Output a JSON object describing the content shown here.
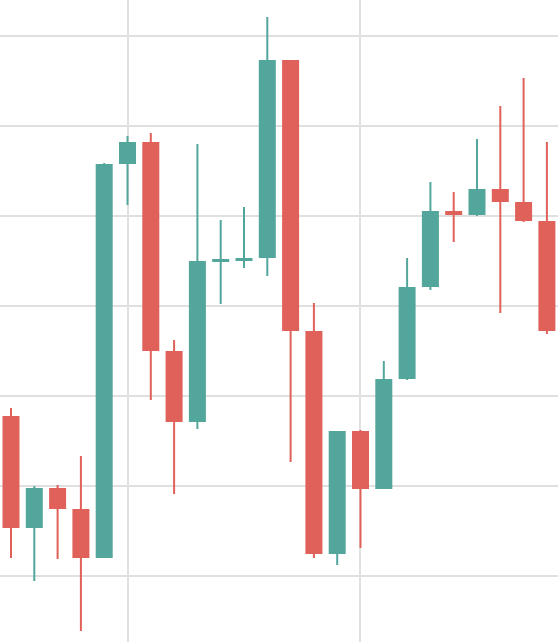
{
  "chart_data": {
    "type": "candlestick",
    "title": "",
    "xlabel": "",
    "ylabel": "",
    "grid": true,
    "colors": {
      "up": "#53a69b",
      "down": "#e0605a",
      "grid": "#e0e0e0",
      "background": "#ffffff"
    },
    "ylim": [
      0,
      642
    ],
    "candles": [
      {
        "open": 226,
        "high": 234,
        "low": 84,
        "close": 114
      },
      {
        "open": 114,
        "high": 156,
        "low": 61,
        "close": 154
      },
      {
        "open": 154,
        "high": 157,
        "low": 83,
        "close": 133
      },
      {
        "open": 133,
        "high": 186,
        "low": 11,
        "close": 84
      },
      {
        "open": 84,
        "high": 479,
        "low": 84,
        "close": 478
      },
      {
        "open": 478,
        "high": 506,
        "low": 437,
        "close": 500
      },
      {
        "open": 500,
        "high": 509,
        "low": 242,
        "close": 291
      },
      {
        "open": 291,
        "high": 302,
        "low": 148,
        "close": 220
      },
      {
        "open": 220,
        "high": 498,
        "low": 213,
        "close": 381
      },
      {
        "open": 381,
        "high": 422,
        "low": 338,
        "close": 383
      },
      {
        "open": 383,
        "high": 435,
        "low": 374,
        "close": 384
      },
      {
        "open": 384,
        "high": 625,
        "low": 366,
        "close": 582
      },
      {
        "open": 582,
        "high": 582,
        "low": 180,
        "close": 311
      },
      {
        "open": 311,
        "high": 339,
        "low": 84,
        "close": 88
      },
      {
        "open": 88,
        "high": 211,
        "low": 77,
        "close": 211
      },
      {
        "open": 211,
        "high": 212,
        "low": 94,
        "close": 153
      },
      {
        "open": 153,
        "high": 281,
        "low": 153,
        "close": 263
      },
      {
        "open": 263,
        "high": 384,
        "low": 262,
        "close": 355
      },
      {
        "open": 355,
        "high": 460,
        "low": 352,
        "close": 431
      },
      {
        "open": 431,
        "high": 450,
        "low": 400,
        "close": 427
      },
      {
        "open": 427,
        "high": 503,
        "low": 426,
        "close": 453
      },
      {
        "open": 453,
        "high": 536,
        "low": 329,
        "close": 440
      },
      {
        "open": 440,
        "high": 564,
        "low": 420,
        "close": 421
      },
      {
        "open": 421,
        "high": 500,
        "low": 308,
        "close": 311
      }
    ]
  }
}
